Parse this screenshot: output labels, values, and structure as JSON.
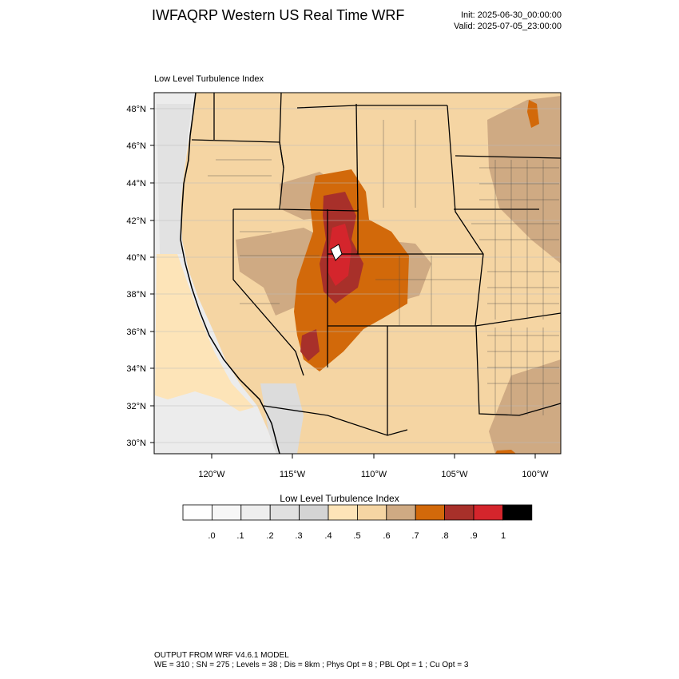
{
  "header": {
    "title": "IWFAQRP Western US Real Time WRF",
    "init": "Init: 2025-06-30_00:00:00",
    "valid": "Valid: 2025-07-05_23:00:00"
  },
  "panel": {
    "title": "Low Level Turbulence Index"
  },
  "map": {
    "lat_labels": [
      "48°N",
      "46°N",
      "44°N",
      "42°N",
      "40°N",
      "38°N",
      "36°N",
      "34°N",
      "32°N",
      "30°N"
    ],
    "lon_labels": [
      "120°W",
      "115°W",
      "110°W",
      "105°W",
      "100°W"
    ]
  },
  "colorbar": {
    "title": "Low Level Turbulence Index",
    "labels": [
      ".0",
      ".1",
      ".2",
      ".3",
      ".4",
      ".5",
      ".6",
      ".7",
      ".8",
      ".9",
      "1"
    ],
    "colors": [
      "#ffffff",
      "#f7f7f7",
      "#eeeeee",
      "#e0e0e0",
      "#d4d4d4",
      "#fde4b8",
      "#f5d5a3",
      "#cfaa83",
      "#d2690a",
      "#a8302a",
      "#d4252c",
      "#000000"
    ]
  },
  "footer": {
    "line1": "OUTPUT FROM WRF V4.6.1 MODEL",
    "line2": "WE = 310 ; SN = 275 ; Levels = 38 ; Dis = 8km ; Phys Opt = 8 ; PBL Opt = 1 ; Cu Opt = 3"
  }
}
